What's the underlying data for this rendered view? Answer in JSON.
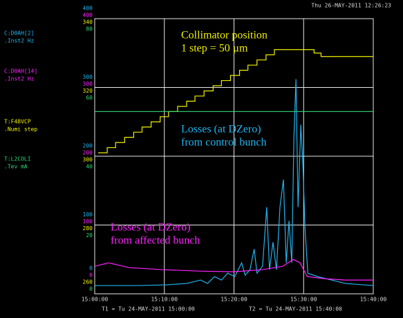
{
  "chart_data": {
    "type": "line",
    "header": "Thu 26-MAY-2011 12:26:23",
    "footer_start": "T1 = Tu 24-MAY-2011 15:00:00",
    "footer_end": "T2 = Tu 24-MAY-2011 15:40:00",
    "xlim": [
      0,
      40
    ],
    "xticks": [
      {
        "value": 0,
        "label": "15:00:00"
      },
      {
        "value": 10,
        "label": "15:10:00"
      },
      {
        "value": 20,
        "label": "15:20:00"
      },
      {
        "value": 30,
        "label": "15:30:00"
      },
      {
        "value": 40,
        "label": "15:40:00"
      }
    ],
    "grid": true,
    "annotations": [
      {
        "lines": [
          "Collimator position",
          "1 step = 50 µm"
        ],
        "color": "#f0f000"
      },
      {
        "lines": [
          "Losses (at DZero)",
          "from control bunch"
        ],
        "color": "#22b4f0"
      },
      {
        "lines": [
          "Losses (at DZero)",
          "from affected bunch"
        ],
        "color": "#ff22ff"
      }
    ],
    "series": [
      {
        "name": "C:D0AH[2]",
        "units": ".Inst2  Hz",
        "color": "#22b4f0",
        "ylim": [
          0,
          400
        ],
        "yticks": [
          0,
          100,
          200,
          300,
          400
        ],
        "x": [
          0,
          6.2,
          10.2,
          13.2,
          15.2,
          16.2,
          17.2,
          18.2,
          19.1,
          20.1,
          21.1,
          21.6,
          22.3,
          22.9,
          23.3,
          24.1,
          24.7,
          25.1,
          25.6,
          26.1,
          26.6,
          27.1,
          27.5,
          27.9,
          28.3,
          28.6,
          28.9,
          29.2,
          29.6,
          29.9,
          30.2,
          30.6,
          32,
          34,
          36,
          40
        ],
        "values": [
          12,
          12,
          13,
          15,
          20,
          15,
          25,
          20,
          30,
          25,
          45,
          27,
          35,
          65,
          30,
          40,
          126,
          35,
          75,
          35,
          126,
          166,
          45,
          106,
          45,
          226,
          312,
          126,
          246,
          186,
          95,
          30,
          25,
          20,
          15,
          12
        ]
      },
      {
        "name": "C:D0AH[14]",
        "units": ".Inst2  Hz",
        "color": "#ff22ff",
        "ylim": [
          0,
          400
        ],
        "yticks": [
          0,
          100,
          200,
          300,
          400
        ],
        "x": [
          0,
          2,
          5,
          10,
          15,
          20,
          24,
          27,
          28.5,
          29.5,
          30.5,
          33,
          36,
          40
        ],
        "values": [
          40,
          45,
          38,
          35,
          33,
          32,
          35,
          40,
          50,
          45,
          25,
          22,
          20,
          20
        ]
      },
      {
        "name": "T:F48VCP",
        "units": ".Numi  step",
        "color": "#f0f000",
        "steps": true,
        "ylim": [
          260,
          340
        ],
        "yticks": [
          260,
          280,
          300,
          320,
          340
        ],
        "x": [
          0.5,
          1.8,
          3.0,
          4.3,
          5.6,
          6.8,
          8.1,
          9.4,
          10.6,
          11.9,
          13.2,
          14.4,
          15.7,
          17.0,
          18.2,
          19.5,
          20.8,
          22.0,
          23.3,
          24.6,
          25.8,
          31.5,
          32.5,
          40
        ],
        "values": [
          301,
          302.5,
          304,
          305.5,
          307,
          308.5,
          310,
          311.5,
          313,
          314.5,
          316,
          317.5,
          319,
          320.5,
          322,
          323.5,
          325,
          326.5,
          328,
          329.5,
          331,
          330,
          329,
          329
        ]
      },
      {
        "name": "T:L2COLI",
        "units": ".Tev    mA",
        "color": "#30d878",
        "ylim": [
          0,
          80
        ],
        "yticks": [
          0,
          20,
          40,
          60,
          80
        ],
        "x": [
          0,
          10,
          20,
          30,
          40
        ],
        "values": [
          53,
          53,
          53,
          53,
          53
        ]
      }
    ]
  }
}
